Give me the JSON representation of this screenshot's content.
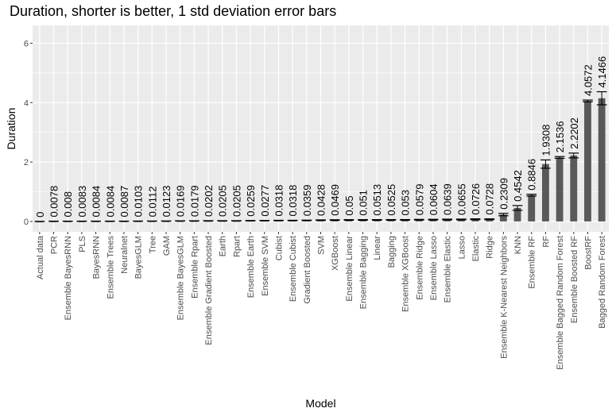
{
  "chart_data": {
    "type": "bar",
    "title": "Duration, shorter is better, 1 std deviation error bars",
    "xlabel": "Model",
    "ylabel": "Duration",
    "ylim": [
      -0.35,
      6.6
    ],
    "yticks": [
      0,
      2,
      4,
      6
    ],
    "grid": true,
    "categories": [
      "Actual data",
      "PCR",
      "Ensemble BayesRNN",
      "PLS",
      "BayesRNN",
      "Ensemble Trees",
      "Neuralnet",
      "BayesGLM",
      "Tree",
      "GAM",
      "Ensemble BayesGLM",
      "Ensemble Rpart",
      "Ensemble Gradient Boosted",
      "Earth",
      "Rpart",
      "Ensemble Earth",
      "Ensemble SVM",
      "Cubist",
      "Ensemble Cubist",
      "Gradient Boosted",
      "SVM",
      "XGBoost",
      "Ensemble Linear",
      "Ensemble Bagging",
      "Linear",
      "Bagging",
      "Ensemble XGBoost",
      "Ensemble Ridge",
      "Ensemble Lasso",
      "Ensemble Elastic",
      "Lasso",
      "Elastic",
      "Ridge",
      "Ensemble K-Nearest Neighbors",
      "KNN",
      "Ensemble RF",
      "RF",
      "Ensemble Bagged Random Forest",
      "Ensemble Boosted RF",
      "BoostRF",
      "Bagged Random Forest"
    ],
    "values": [
      0,
      0.0078,
      0.008,
      0.0083,
      0.0084,
      0.0084,
      0.0087,
      0.0103,
      0.0112,
      0.0123,
      0.0169,
      0.0179,
      0.0202,
      0.0205,
      0.0205,
      0.0259,
      0.0277,
      0.0318,
      0.0318,
      0.0359,
      0.0428,
      0.0469,
      0.05,
      0.051,
      0.0513,
      0.0525,
      0.053,
      0.0579,
      0.0604,
      0.0639,
      0.0655,
      0.0726,
      0.0728,
      0.2309,
      0.4542,
      0.8846,
      1.9308,
      2.1536,
      2.2202,
      4.0572,
      4.1466
    ],
    "labels": [
      "0",
      "0.0078",
      "0.008",
      "0.0083",
      "0.0084",
      "0.0084",
      "0.0087",
      "0.0103",
      "0.0112",
      "0.0123",
      "0.0169",
      "0.0179",
      "0.0202",
      "0.0205",
      "0.0205",
      "0.0259",
      "0.0277",
      "0.0318",
      "0.0318",
      "0.0359",
      "0.0428",
      "0.0469",
      "0.05",
      "0.051",
      "0.0513",
      "0.0525",
      "0.053",
      "0.0579",
      "0.0604",
      "0.0639",
      "0.0655",
      "0.0726",
      "0.0728",
      "0.2309",
      "0.4542",
      "0.8846",
      "1.9308",
      "2.1536",
      "2.2202",
      "4.0572",
      "4.1466"
    ],
    "errors": [
      0,
      0.002,
      0.002,
      0.002,
      0.002,
      0.002,
      0.002,
      0.003,
      0.003,
      0.003,
      0.004,
      0.004,
      0.005,
      0.005,
      0.005,
      0.006,
      0.006,
      0.007,
      0.007,
      0.008,
      0.009,
      0.01,
      0.01,
      0.01,
      0.01,
      0.01,
      0.01,
      0.012,
      0.012,
      0.013,
      0.013,
      0.015,
      0.015,
      0.04,
      0.08,
      0.03,
      0.14,
      0.03,
      0.08,
      0.03,
      0.22
    ],
    "colors": {
      "bar": "#595959",
      "panel": "#ebebeb",
      "grid": "#ffffff",
      "error": "#000000"
    }
  }
}
